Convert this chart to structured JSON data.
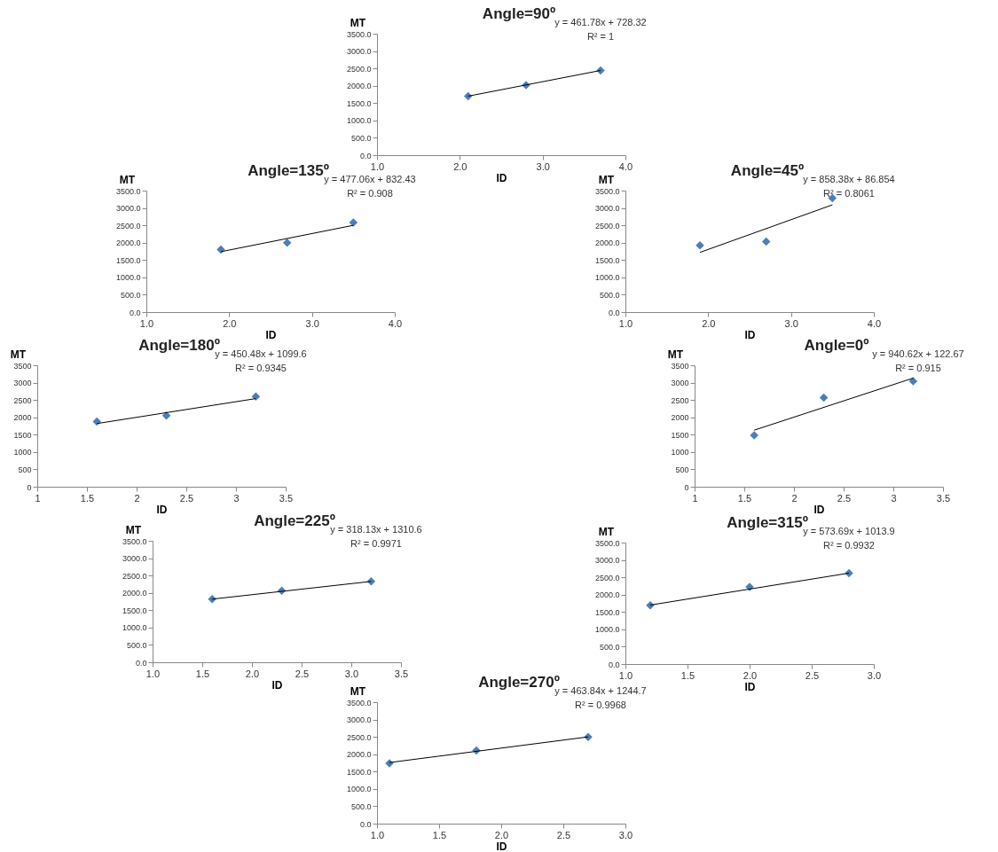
{
  "chart_data": [
    {
      "type": "scatter",
      "title": "Angle=90º",
      "xlabel": "ID",
      "ylabel": "MT",
      "grid": false,
      "annotations": [
        "y = 461.78x + 728.32",
        "R² = 1"
      ],
      "xlim": [
        1,
        4
      ],
      "ylim": [
        0,
        3500
      ],
      "xticks": [
        {
          "value": 1,
          "label": "1.0"
        },
        {
          "value": 2,
          "label": "2.0"
        },
        {
          "value": 3,
          "label": "3.0"
        },
        {
          "value": 4,
          "label": "4.0"
        }
      ],
      "yticks": [
        {
          "value": 0,
          "label": "0.0"
        },
        {
          "value": 500,
          "label": "500.0"
        },
        {
          "value": 1000,
          "label": "1000.0"
        },
        {
          "value": 1500,
          "label": "1500.0"
        },
        {
          "value": 2000,
          "label": "2000.0"
        },
        {
          "value": 2500,
          "label": "2500.0"
        },
        {
          "value": 3000,
          "label": "3000.0"
        },
        {
          "value": 3500,
          "label": "3500.0"
        }
      ],
      "series": [
        {
          "type": "scatter",
          "color": "#4a7ebb",
          "marker": "diamond",
          "x": [
            2.1,
            2.8,
            3.7
          ],
          "values": [
            1700,
            2020,
            2440
          ]
        },
        {
          "type": "line",
          "color": "#000000",
          "x": [
            2.1,
            3.7
          ],
          "values": [
            1700,
            2440
          ]
        }
      ]
    },
    {
      "type": "scatter",
      "title": "Angle=135º",
      "xlabel": "ID",
      "ylabel": "MT",
      "grid": false,
      "annotations": [
        "y = 477.06x + 832.43",
        "R² = 0.908"
      ],
      "xlim": [
        1,
        4
      ],
      "ylim": [
        0,
        3500
      ],
      "xticks": [
        {
          "value": 1,
          "label": "1.0"
        },
        {
          "value": 2,
          "label": "2.0"
        },
        {
          "value": 3,
          "label": "3.0"
        },
        {
          "value": 4,
          "label": "4.0"
        }
      ],
      "yticks": [
        {
          "value": 0,
          "label": "0.0"
        },
        {
          "value": 500,
          "label": "500.0"
        },
        {
          "value": 1000,
          "label": "1000.0"
        },
        {
          "value": 1500,
          "label": "1500.0"
        },
        {
          "value": 2000,
          "label": "2000.0"
        },
        {
          "value": 2500,
          "label": "2500.0"
        },
        {
          "value": 3000,
          "label": "3000.0"
        },
        {
          "value": 3500,
          "label": "3500.0"
        }
      ],
      "series": [
        {
          "type": "scatter",
          "color": "#4a7ebb",
          "marker": "diamond",
          "x": [
            1.9,
            2.7,
            3.5
          ],
          "values": [
            1800,
            2000,
            2580
          ]
        },
        {
          "type": "line",
          "color": "#000000",
          "x": [
            1.9,
            3.5
          ],
          "values": [
            1740,
            2500
          ]
        }
      ]
    },
    {
      "type": "scatter",
      "title": "Angle=45º",
      "xlabel": "ID",
      "ylabel": "MT",
      "grid": false,
      "annotations": [
        "y = 858.38x + 86.854",
        "R² = 0.8061"
      ],
      "xlim": [
        1,
        4
      ],
      "ylim": [
        0,
        3500
      ],
      "xticks": [
        {
          "value": 1,
          "label": "1.0"
        },
        {
          "value": 2,
          "label": "2.0"
        },
        {
          "value": 3,
          "label": "3.0"
        },
        {
          "value": 4,
          "label": "4.0"
        }
      ],
      "yticks": [
        {
          "value": 0,
          "label": "0.0"
        },
        {
          "value": 500,
          "label": "500.0"
        },
        {
          "value": 1000,
          "label": "1000.0"
        },
        {
          "value": 1500,
          "label": "1500.0"
        },
        {
          "value": 2000,
          "label": "2000.0"
        },
        {
          "value": 2500,
          "label": "2500.0"
        },
        {
          "value": 3000,
          "label": "3000.0"
        },
        {
          "value": 3500,
          "label": "3500.0"
        }
      ],
      "series": [
        {
          "type": "scatter",
          "color": "#4a7ebb",
          "marker": "diamond",
          "x": [
            1.9,
            2.7,
            3.5
          ],
          "values": [
            1920,
            2030,
            3280
          ]
        },
        {
          "type": "line",
          "color": "#000000",
          "x": [
            1.9,
            3.5
          ],
          "values": [
            1720,
            3090
          ]
        }
      ]
    },
    {
      "type": "scatter",
      "title": "Angle=180º",
      "xlabel": "ID",
      "ylabel": "MT",
      "grid": false,
      "annotations": [
        "y = 450.48x + 1099.6",
        "R² = 0.9345"
      ],
      "xlim": [
        1,
        3.5
      ],
      "ylim": [
        0,
        3500
      ],
      "xticks": [
        1,
        1.5,
        2,
        2.5,
        3,
        3.5
      ],
      "yticks": [
        0,
        500,
        1000,
        1500,
        2000,
        2500,
        3000,
        3500
      ],
      "series": [
        {
          "type": "scatter",
          "color": "#4a7ebb",
          "marker": "diamond",
          "x": [
            1.6,
            2.3,
            3.2
          ],
          "values": [
            1880,
            2050,
            2600
          ]
        },
        {
          "type": "line",
          "color": "#000000",
          "x": [
            1.6,
            3.2
          ],
          "values": [
            1820,
            2540
          ]
        }
      ]
    },
    {
      "type": "scatter",
      "title": "Angle=0º",
      "xlabel": "ID",
      "ylabel": "MT",
      "grid": false,
      "annotations": [
        "y = 940.62x + 122.67",
        "R² = 0.915"
      ],
      "xlim": [
        1,
        3.5
      ],
      "ylim": [
        0,
        3500
      ],
      "xticks": [
        1,
        1.5,
        2,
        2.5,
        3,
        3.5
      ],
      "yticks": [
        0,
        500,
        1000,
        1500,
        2000,
        2500,
        3000,
        3500
      ],
      "series": [
        {
          "type": "scatter",
          "color": "#4a7ebb",
          "marker": "diamond",
          "x": [
            1.6,
            2.3,
            3.2
          ],
          "values": [
            1480,
            2570,
            3040
          ]
        },
        {
          "type": "line",
          "color": "#000000",
          "x": [
            1.6,
            3.2
          ],
          "values": [
            1630,
            3130
          ]
        }
      ]
    },
    {
      "type": "scatter",
      "title": "Angle=225º",
      "xlabel": "ID",
      "ylabel": "MT",
      "grid": false,
      "annotations": [
        "y = 318.13x + 1310.6",
        "R² = 0.9971"
      ],
      "xlim": [
        1,
        3.5
      ],
      "ylim": [
        0,
        3500
      ],
      "xticks": [
        {
          "value": 1,
          "label": "1.0"
        },
        {
          "value": 1.5,
          "label": "1.5"
        },
        {
          "value": 2,
          "label": "2.0"
        },
        {
          "value": 2.5,
          "label": "2.5"
        },
        {
          "value": 3,
          "label": "3.0"
        },
        {
          "value": 3.5,
          "label": "3.5"
        }
      ],
      "yticks": [
        {
          "value": 0,
          "label": "0.0"
        },
        {
          "value": 500,
          "label": "500.0"
        },
        {
          "value": 1000,
          "label": "1000.0"
        },
        {
          "value": 1500,
          "label": "1500.0"
        },
        {
          "value": 2000,
          "label": "2000.0"
        },
        {
          "value": 2500,
          "label": "2500.0"
        },
        {
          "value": 3000,
          "label": "3000.0"
        },
        {
          "value": 3500,
          "label": "3500.0"
        }
      ],
      "series": [
        {
          "type": "scatter",
          "color": "#4a7ebb",
          "marker": "diamond",
          "x": [
            1.6,
            2.3,
            3.2
          ],
          "values": [
            1820,
            2060,
            2330
          ]
        },
        {
          "type": "line",
          "color": "#000000",
          "x": [
            1.6,
            3.2
          ],
          "values": [
            1820,
            2330
          ]
        }
      ]
    },
    {
      "type": "scatter",
      "title": "Angle=315º",
      "xlabel": "ID",
      "ylabel": "MT",
      "grid": false,
      "annotations": [
        "y = 573.69x + 1013.9",
        "R² = 0.9932"
      ],
      "xlim": [
        1,
        3
      ],
      "ylim": [
        0,
        3500
      ],
      "xticks": [
        {
          "value": 1,
          "label": "1.0"
        },
        {
          "value": 1.5,
          "label": "1.5"
        },
        {
          "value": 2,
          "label": "2.0"
        },
        {
          "value": 2.5,
          "label": "2.5"
        },
        {
          "value": 3,
          "label": "3.0"
        }
      ],
      "yticks": [
        {
          "value": 0,
          "label": "0.0"
        },
        {
          "value": 500,
          "label": "500.0"
        },
        {
          "value": 1000,
          "label": "1000.0"
        },
        {
          "value": 1500,
          "label": "1500.0"
        },
        {
          "value": 2000,
          "label": "2000.0"
        },
        {
          "value": 2500,
          "label": "2500.0"
        },
        {
          "value": 3000,
          "label": "3000.0"
        },
        {
          "value": 3500,
          "label": "3500.0"
        }
      ],
      "series": [
        {
          "type": "scatter",
          "color": "#4a7ebb",
          "marker": "diamond",
          "x": [
            1.2,
            2,
            2.8
          ],
          "values": [
            1690,
            2220,
            2620
          ]
        },
        {
          "type": "line",
          "color": "#000000",
          "x": [
            1.2,
            2.8
          ],
          "values": [
            1700,
            2620
          ]
        }
      ]
    },
    {
      "type": "scatter",
      "title": "Angle=270º",
      "xlabel": "ID",
      "ylabel": "MT",
      "grid": false,
      "annotations": [
        "y = 463.84x + 1244.7",
        "R² = 0.9968"
      ],
      "xlim": [
        1,
        3
      ],
      "ylim": [
        0,
        3500
      ],
      "xticks": [
        {
          "value": 1,
          "label": "1.0"
        },
        {
          "value": 1.5,
          "label": "1.5"
        },
        {
          "value": 2,
          "label": "2.0"
        },
        {
          "value": 2.5,
          "label": "2.5"
        },
        {
          "value": 3,
          "label": "3.0"
        }
      ],
      "yticks": [
        {
          "value": 0,
          "label": "0.0"
        },
        {
          "value": 500,
          "label": "500.0"
        },
        {
          "value": 1000,
          "label": "1000.0"
        },
        {
          "value": 1500,
          "label": "1500.0"
        },
        {
          "value": 2000,
          "label": "2000.0"
        },
        {
          "value": 2500,
          "label": "2500.0"
        },
        {
          "value": 3000,
          "label": "3000.0"
        },
        {
          "value": 3500,
          "label": "3500.0"
        }
      ],
      "series": [
        {
          "type": "scatter",
          "color": "#4a7ebb",
          "marker": "diamond",
          "x": [
            1.1,
            1.8,
            2.7
          ],
          "values": [
            1740,
            2110,
            2500
          ]
        },
        {
          "type": "line",
          "color": "#000000",
          "x": [
            1.1,
            2.7
          ],
          "values": [
            1760,
            2500
          ]
        }
      ]
    }
  ]
}
